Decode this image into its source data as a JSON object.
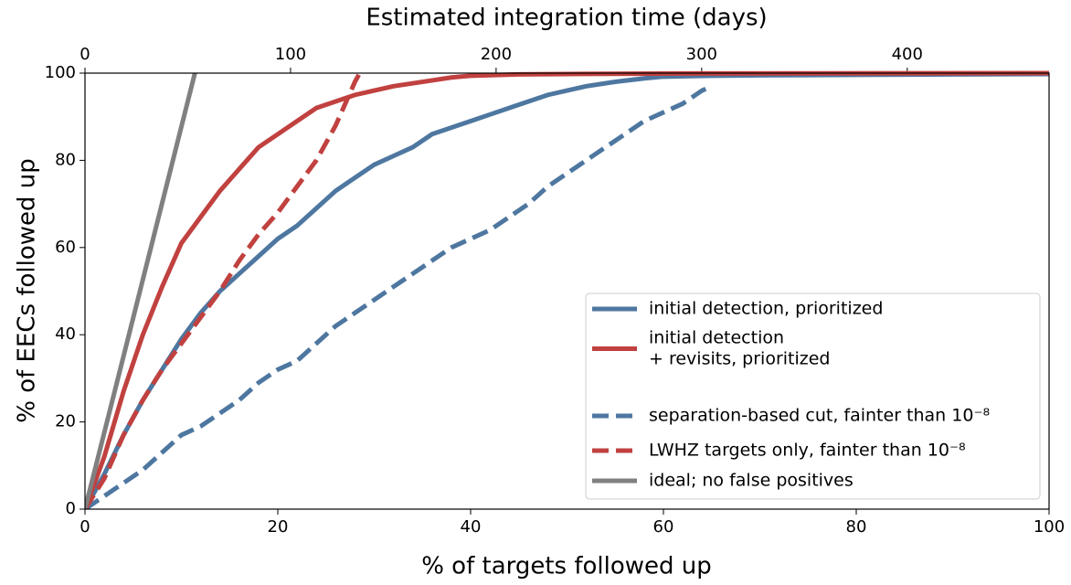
{
  "chart_data": {
    "type": "line",
    "xlabel": "% of targets followed up",
    "ylabel": "% of EECs followed up",
    "x2label": "Estimated integration time (days)",
    "xlim": [
      0,
      100
    ],
    "xticks": [
      0,
      20,
      40,
      60,
      80,
      100
    ],
    "ylim": [
      0,
      100
    ],
    "yticks": [
      0,
      20,
      40,
      60,
      80,
      100
    ],
    "x2lim": [
      0,
      469
    ],
    "x2ticks": [
      0,
      100,
      200,
      300,
      400
    ],
    "legend": "lower right",
    "series": [
      {
        "name": [
          "initial detection, prioritized"
        ],
        "color": "#4e77a0",
        "dashed": false,
        "x": [
          0,
          2,
          4,
          6,
          8,
          10,
          12,
          14,
          16,
          18,
          20,
          22,
          24,
          26,
          28,
          30,
          32,
          34,
          36,
          38,
          40,
          42,
          44,
          46,
          48,
          50,
          52,
          55,
          58,
          60,
          65,
          70,
          80,
          90,
          100
        ],
        "values": [
          0,
          8,
          17,
          25,
          32,
          39,
          45,
          50,
          54,
          58,
          62,
          65,
          69,
          73,
          76,
          79,
          81,
          83,
          86,
          87.5,
          89,
          90.5,
          92,
          93.5,
          95,
          96,
          97,
          98,
          98.8,
          99.2,
          99.4,
          99.5,
          99.6,
          99.7,
          99.8
        ]
      },
      {
        "name": [
          "initial detection",
          "+ revisits, prioritized"
        ],
        "color": "#c0413f",
        "dashed": false,
        "x": [
          0,
          2,
          4,
          6,
          8,
          10,
          12,
          14,
          16,
          18,
          20,
          22,
          24,
          26,
          28,
          30,
          32,
          35,
          38,
          40,
          45,
          50,
          60,
          100
        ],
        "values": [
          0,
          12,
          27,
          40,
          51,
          61,
          67,
          73,
          78,
          83,
          86,
          89,
          92,
          93.5,
          95,
          96,
          97,
          98,
          99,
          99.4,
          99.7,
          99.8,
          99.9,
          100
        ]
      },
      {
        "name": [
          "separation-based cut, fainter than 10⁻⁸"
        ],
        "color": "#4e77a0",
        "dashed": true,
        "x": [
          0,
          2,
          4,
          6,
          8,
          10,
          12,
          14,
          16,
          18,
          20,
          22,
          24,
          26,
          28,
          30,
          32,
          34,
          36,
          38,
          40,
          42,
          44,
          46,
          48,
          50,
          52,
          54,
          56,
          58,
          60,
          62,
          64,
          65
        ],
        "values": [
          0,
          3,
          6,
          9,
          13,
          17,
          19,
          22,
          25,
          29,
          32,
          34,
          38,
          42,
          45,
          48,
          51,
          54,
          57,
          60,
          62,
          64,
          67,
          70,
          74,
          77,
          80,
          83,
          86,
          89,
          91,
          93,
          96,
          97
        ]
      },
      {
        "name": [
          "LWHZ targets only, fainter than 10⁻⁸"
        ],
        "color": "#c0413f",
        "dashed": true,
        "x": [
          0,
          2,
          4,
          6,
          8,
          10,
          12,
          14,
          16,
          18,
          20,
          22,
          24,
          26,
          27,
          28,
          28.5
        ],
        "values": [
          0,
          7,
          17,
          25,
          32,
          38,
          44,
          50,
          57,
          63,
          68,
          74,
          80,
          88,
          93,
          98,
          100
        ]
      },
      {
        "name": [
          "ideal; no false positives"
        ],
        "color": "#808080",
        "dashed": false,
        "x": [
          0,
          11.4
        ],
        "values": [
          0,
          100
        ]
      }
    ]
  }
}
